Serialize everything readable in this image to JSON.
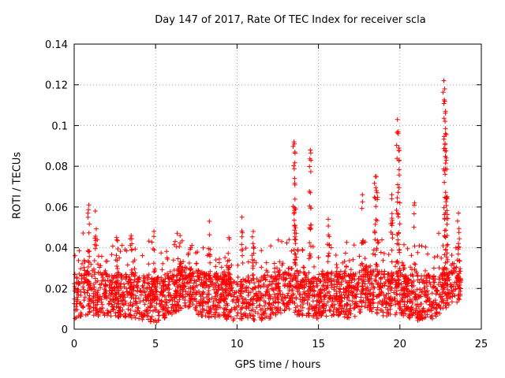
{
  "chart_data": {
    "type": "scatter",
    "title": "Day 147 of 2017, Rate Of TEC Index for receiver scla",
    "xlabel": "GPS time / hours",
    "ylabel": "ROTI / TECUs",
    "xlim": [
      0,
      25
    ],
    "ylim": [
      0,
      0.14
    ],
    "x_ticks": [
      0,
      5,
      10,
      15,
      20,
      25
    ],
    "x_tick_labels": [
      "0",
      "5",
      "10",
      "15",
      "20",
      "25"
    ],
    "y_ticks": [
      0,
      0.02,
      0.04,
      0.06,
      0.08,
      0.1,
      0.12,
      0.14
    ],
    "y_tick_labels": [
      "0",
      "0.02",
      "0.04",
      "0.06",
      "0.08",
      "0.1",
      "0.12",
      "0.14"
    ],
    "grid": true,
    "marker": "+",
    "color": "#ff0000",
    "x_data_range": [
      0,
      23.75
    ],
    "series": [
      {
        "name": "ROTI",
        "baseline": [
          {
            "x": 0.0,
            "y": 0.016
          },
          {
            "x": 1.0,
            "y": 0.018
          },
          {
            "x": 2.0,
            "y": 0.016
          },
          {
            "x": 3.0,
            "y": 0.017
          },
          {
            "x": 4.0,
            "y": 0.016
          },
          {
            "x": 5.0,
            "y": 0.014
          },
          {
            "x": 6.0,
            "y": 0.018
          },
          {
            "x": 7.0,
            "y": 0.02
          },
          {
            "x": 8.0,
            "y": 0.017
          },
          {
            "x": 9.0,
            "y": 0.016
          },
          {
            "x": 10.0,
            "y": 0.015
          },
          {
            "x": 11.0,
            "y": 0.015
          },
          {
            "x": 12.0,
            "y": 0.016
          },
          {
            "x": 13.0,
            "y": 0.02
          },
          {
            "x": 14.0,
            "y": 0.017
          },
          {
            "x": 15.0,
            "y": 0.016
          },
          {
            "x": 16.0,
            "y": 0.018
          },
          {
            "x": 17.0,
            "y": 0.016
          },
          {
            "x": 18.0,
            "y": 0.02
          },
          {
            "x": 19.0,
            "y": 0.017
          },
          {
            "x": 20.0,
            "y": 0.018
          },
          {
            "x": 21.0,
            "y": 0.015
          },
          {
            "x": 22.0,
            "y": 0.016
          },
          {
            "x": 23.0,
            "y": 0.022
          },
          {
            "x": 23.75,
            "y": 0.024
          }
        ],
        "spikes": [
          {
            "x": 0.9,
            "y": 0.061
          },
          {
            "x": 1.3,
            "y": 0.058
          },
          {
            "x": 2.6,
            "y": 0.045
          },
          {
            "x": 3.5,
            "y": 0.046
          },
          {
            "x": 4.9,
            "y": 0.048
          },
          {
            "x": 6.5,
            "y": 0.046
          },
          {
            "x": 8.3,
            "y": 0.053
          },
          {
            "x": 9.5,
            "y": 0.045
          },
          {
            "x": 10.3,
            "y": 0.055
          },
          {
            "x": 11.0,
            "y": 0.048
          },
          {
            "x": 13.5,
            "y": 0.092
          },
          {
            "x": 13.55,
            "y": 0.087
          },
          {
            "x": 13.6,
            "y": 0.059
          },
          {
            "x": 14.5,
            "y": 0.088
          },
          {
            "x": 14.5,
            "y": 0.067
          },
          {
            "x": 15.6,
            "y": 0.054
          },
          {
            "x": 17.7,
            "y": 0.066
          },
          {
            "x": 18.5,
            "y": 0.075
          },
          {
            "x": 18.6,
            "y": 0.067
          },
          {
            "x": 19.5,
            "y": 0.066
          },
          {
            "x": 19.85,
            "y": 0.103
          },
          {
            "x": 19.9,
            "y": 0.097
          },
          {
            "x": 19.95,
            "y": 0.083
          },
          {
            "x": 20.9,
            "y": 0.062
          },
          {
            "x": 22.7,
            "y": 0.122
          },
          {
            "x": 22.75,
            "y": 0.118
          },
          {
            "x": 22.8,
            "y": 0.107
          },
          {
            "x": 22.8,
            "y": 0.096
          },
          {
            "x": 22.85,
            "y": 0.083
          },
          {
            "x": 22.9,
            "y": 0.065
          },
          {
            "x": 23.6,
            "y": 0.057
          }
        ]
      }
    ]
  }
}
